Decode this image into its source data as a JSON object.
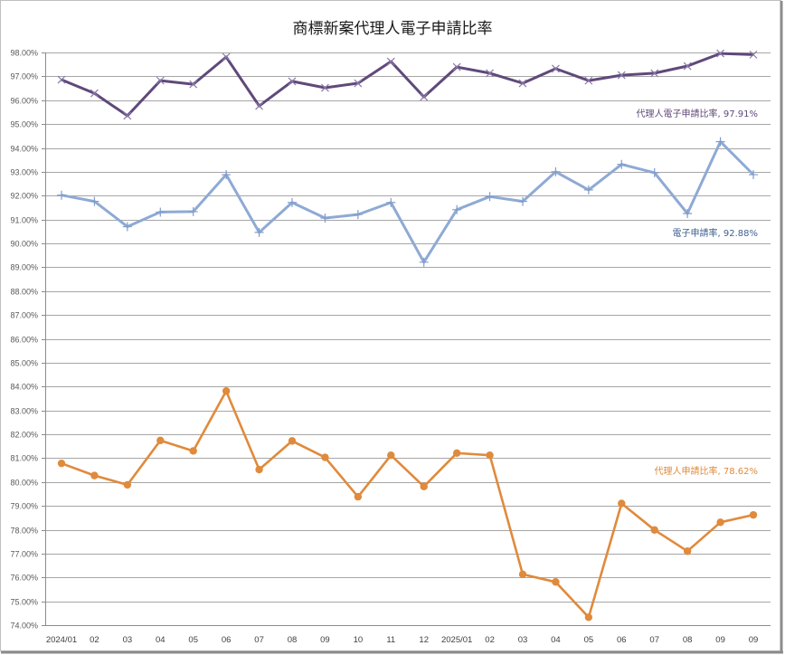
{
  "chart_data": {
    "type": "line",
    "title": "商標新案代理人電子申請比率",
    "xlabel": "",
    "ylabel": "",
    "ylim": [
      0.74,
      0.98
    ],
    "y_ticks": [
      "98.00%",
      "97.00%",
      "96.00%",
      "95.00%",
      "94.00%",
      "93.00%",
      "92.00%",
      "91.00%",
      "90.00%",
      "89.00%",
      "88.00%",
      "87.00%",
      "86.00%",
      "85.00%",
      "84.00%",
      "83.00%",
      "82.00%",
      "81.00%",
      "80.00%",
      "79.00%",
      "78.00%",
      "77.00%",
      "76.00%",
      "75.00%",
      "74.00%"
    ],
    "grid": true,
    "legend": "none (data labels on last point)",
    "categories": [
      "2024/01",
      "02",
      "03",
      "04",
      "05",
      "06",
      "07",
      "08",
      "09",
      "10",
      "11",
      "12",
      "2025/01",
      "02",
      "03",
      "04",
      "05",
      "06",
      "07",
      "08",
      "09",
      "09"
    ],
    "series": [
      {
        "name": "代理人電子申請比率",
        "color": "#60497a",
        "marker": "x",
        "values": [
          96.86,
          96.29,
          95.35,
          96.82,
          96.67,
          97.81,
          95.76,
          96.79,
          96.52,
          96.71,
          97.62,
          96.14,
          97.39,
          97.13,
          96.71,
          97.32,
          96.82,
          97.05,
          97.13,
          97.43,
          97.96,
          97.91
        ],
        "end_label": "代理人電子申請比率, 97.91%"
      },
      {
        "name": "電子申請率",
        "color": "#8eaad4",
        "label_color": "#3f5f8f",
        "marker": "+",
        "values": [
          92.02,
          91.76,
          90.7,
          91.31,
          91.33,
          92.88,
          90.46,
          91.71,
          91.06,
          91.21,
          91.71,
          89.21,
          91.41,
          91.96,
          91.76,
          93.0,
          92.24,
          93.31,
          92.96,
          91.25,
          94.26,
          92.88
        ],
        "end_label": "電子申請率, 92.88%"
      },
      {
        "name": "代理人申請比率",
        "color": "#e08a3c",
        "marker": "circle",
        "values": [
          80.78,
          80.27,
          79.88,
          81.74,
          81.3,
          83.81,
          80.52,
          81.72,
          81.03,
          79.38,
          81.12,
          79.81,
          81.21,
          81.12,
          76.13,
          75.81,
          74.33,
          79.1,
          77.99,
          77.1,
          78.31,
          78.62
        ],
        "end_label": "代理人申請比率, 78.62%"
      }
    ]
  }
}
